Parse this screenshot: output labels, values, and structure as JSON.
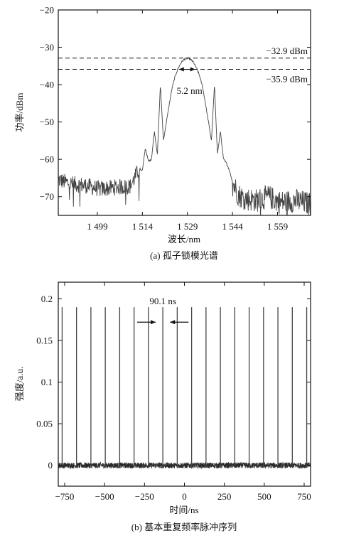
{
  "colors": {
    "axis": "#111111",
    "trace": "#444444",
    "noise": "#2a2a2a",
    "background": "#ffffff"
  },
  "chart_data": [
    {
      "type": "line",
      "xlabel": "波长/nm",
      "ylabel": "功率/dBm",
      "caption": "(a) 孤子锁模光谱",
      "xlim": [
        1486,
        1570
      ],
      "ylim": [
        -75,
        -20
      ],
      "xticks": [
        1499,
        1514,
        1529,
        1544,
        1559
      ],
      "xtick_labels": [
        "1 499",
        "1 514",
        "1 529",
        "1 544",
        "1 559"
      ],
      "yticks": [
        -20,
        -30,
        -40,
        -50,
        -60,
        -70
      ],
      "ytick_labels": [
        "−20",
        "−30",
        "−40",
        "−50",
        "−60",
        "−70"
      ],
      "grid": false,
      "series": [
        {
          "x": [
            1486,
            1490,
            1495,
            1500,
            1505,
            1510,
            1513,
            1514,
            1515,
            1516,
            1517,
            1518,
            1519,
            1520,
            1521,
            1522,
            1523,
            1524,
            1525,
            1526,
            1527,
            1528,
            1529,
            1530,
            1531,
            1532,
            1533,
            1534,
            1535,
            1536,
            1537,
            1538,
            1539,
            1540,
            1541,
            1542,
            1543,
            1544,
            1546,
            1548,
            1552,
            1556,
            1560,
            1565,
            1570
          ],
          "y": [
            -65.5,
            -66.5,
            -67,
            -68,
            -67.5,
            -67.2,
            -62.5,
            -63,
            -57,
            -60.5,
            -60,
            -52.5,
            -58.5,
            -40,
            -55,
            -50,
            -45,
            -40.5,
            -37.5,
            -35.5,
            -34,
            -33.2,
            -32.9,
            -33.2,
            -34,
            -35.5,
            -37.5,
            -40.5,
            -45,
            -50,
            -55,
            -40,
            -58.5,
            -52.5,
            -60,
            -61,
            -63,
            -66,
            -69.5,
            -70.5,
            -71,
            -70,
            -71.5,
            -71,
            -72
          ]
        }
      ],
      "annotations": [
        {
          "text": "−32.9 dBm",
          "y": -32.9,
          "style": "dashed"
        },
        {
          "text": "−35.9 dBm",
          "y": -35.9,
          "style": "dashed"
        },
        {
          "text": "5.2 nm",
          "x_start": 1526.4,
          "x_end": 1531.6,
          "y": -35.9
        }
      ]
    },
    {
      "type": "line",
      "xlabel": "时间/ns",
      "ylabel": "强度/a.u.",
      "caption": "(b) 基本重复频率脉冲序列",
      "xlim": [
        -790,
        790
      ],
      "ylim": [
        -0.025,
        0.22
      ],
      "xticks": [
        -750,
        -500,
        -250,
        0,
        250,
        500,
        750
      ],
      "xtick_labels": [
        "−750",
        "−500",
        "−250",
        "0",
        "250",
        "500",
        "750"
      ],
      "yticks": [
        0,
        0.05,
        0.1,
        0.15,
        0.2
      ],
      "ytick_labels": [
        "0",
        "0.05",
        "0.1",
        "0.15",
        "0.2"
      ],
      "grid": false,
      "pulse_period_ns": 90.1,
      "pulse_times": [
        -765.9,
        -675.8,
        -585.7,
        -495.6,
        -405.5,
        -315.4,
        -225.3,
        -135.2,
        -45.1,
        45.0,
        135.1,
        225.2,
        315.3,
        405.4,
        495.5,
        585.6,
        675.7,
        765.8
      ],
      "pulse_amplitude": 0.19,
      "noise_floor": 0.0,
      "annotations": [
        {
          "text": "90.1 ns",
          "x_start": -180.2,
          "x_end": -90.1,
          "y": 0.172
        }
      ]
    }
  ]
}
